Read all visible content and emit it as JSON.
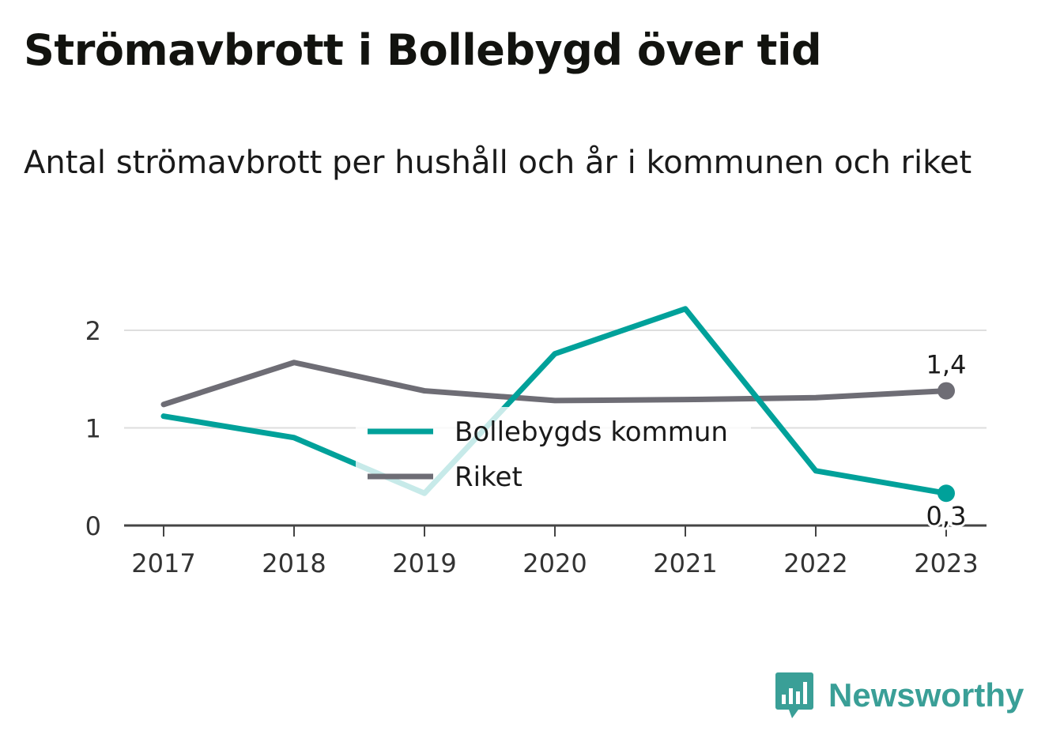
{
  "title": "Strömavbrott i Bollebygd över tid",
  "subtitle": "Antal strömavbrott per hushåll och år i kommunen och riket",
  "chart_data": {
    "type": "line",
    "x": [
      "2017",
      "2018",
      "2019",
      "2020",
      "2021",
      "2022",
      "2023"
    ],
    "ylim": [
      0,
      2.3
    ],
    "y_ticks": [
      "0",
      "1",
      "2"
    ],
    "y_tick_values": [
      0,
      1,
      2
    ],
    "grid": true,
    "legend_position": "center",
    "series": [
      {
        "name": "Bollebygds kommun",
        "color": "#00a19a",
        "values": [
          1.12,
          0.9,
          0.33,
          1.76,
          2.22,
          0.56,
          0.33
        ],
        "end_label": "0,3"
      },
      {
        "name": "Riket",
        "color": "#6e6d75",
        "values": [
          1.24,
          1.67,
          1.38,
          1.28,
          1.29,
          1.31,
          1.38
        ],
        "end_label": "1,4"
      }
    ]
  },
  "brand": {
    "name": "Newsworthy",
    "logo_icon": "bar-chart-speech-bubble-icon",
    "color": "#3a9f97"
  }
}
